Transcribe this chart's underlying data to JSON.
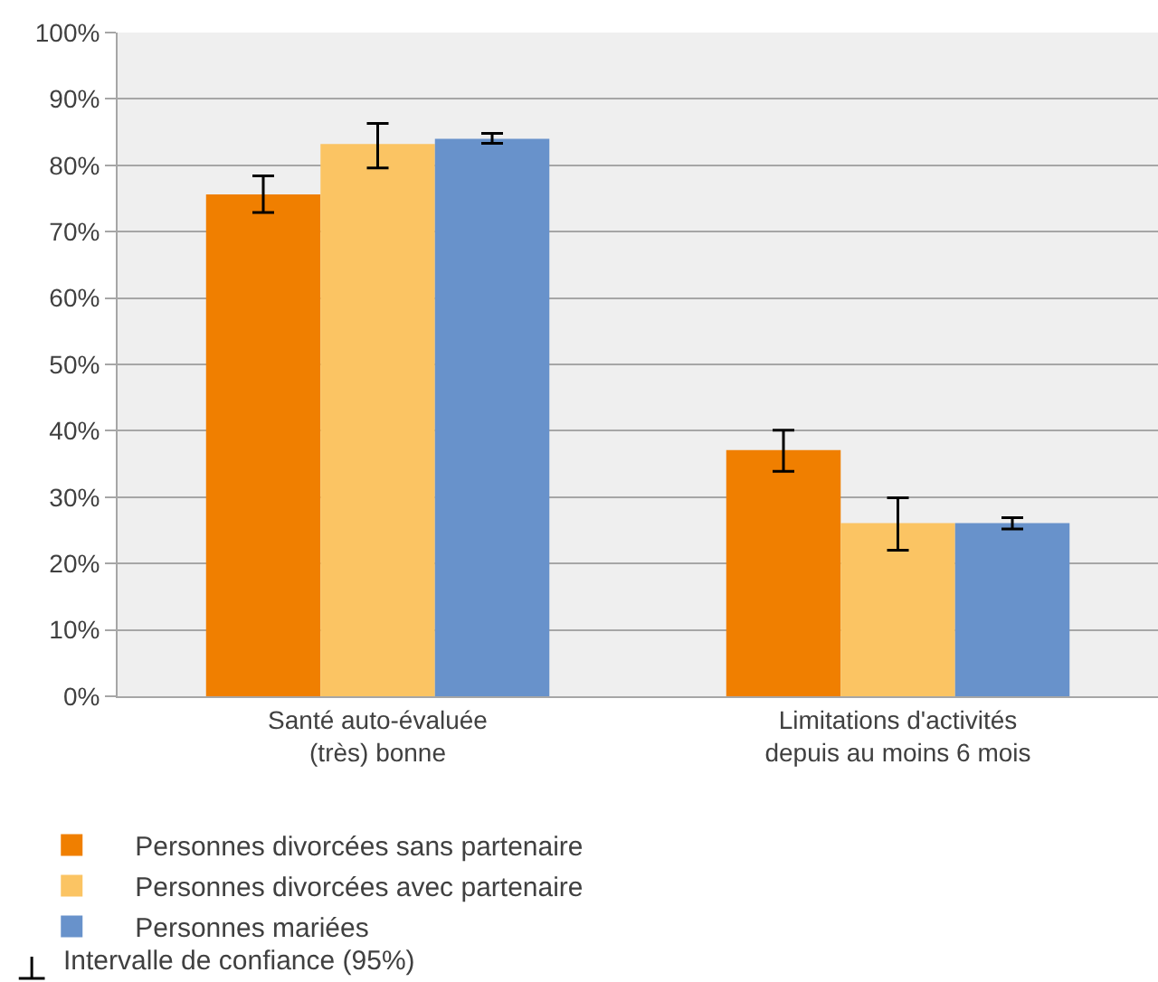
{
  "chart_data": {
    "type": "bar",
    "categories": [
      "Santé auto-évaluée\n(très) bonne",
      "Limitations d'activités\ndepuis au moins 6 mois"
    ],
    "series": [
      {
        "name": "Personnes divorcées sans partenaire",
        "color": "#f07f00",
        "values": [
          75.6,
          37.1
        ],
        "errors": [
          [
            72.9,
            78.4
          ],
          [
            33.9,
            40.1
          ]
        ]
      },
      {
        "name": "Personnes divorcées avec partenaire",
        "color": "#fbc463",
        "values": [
          83.2,
          26.1
        ],
        "errors": [
          [
            79.6,
            86.3
          ],
          [
            22.0,
            29.9
          ]
        ]
      },
      {
        "name": "Personnes mariées",
        "color": "#6892cb",
        "values": [
          84.0,
          26.1
        ],
        "errors": [
          [
            83.3,
            84.8
          ],
          [
            25.2,
            26.9
          ]
        ]
      }
    ],
    "ylim": [
      0,
      100
    ],
    "yticks": [
      {
        "value": 0,
        "label": "0%"
      },
      {
        "value": 10,
        "label": "10%"
      },
      {
        "value": 20,
        "label": "20%"
      },
      {
        "value": 30,
        "label": "30%"
      },
      {
        "value": 40,
        "label": "40%"
      },
      {
        "value": 50,
        "label": "50%"
      },
      {
        "value": 60,
        "label": "60%"
      },
      {
        "value": 70,
        "label": "70%"
      },
      {
        "value": 80,
        "label": "80%"
      },
      {
        "value": 90,
        "label": "90%"
      },
      {
        "value": 100,
        "label": "100%"
      }
    ],
    "grid": "y",
    "legend": "bottom",
    "annotations": [
      "Intervalle de confiance (95%)"
    ]
  }
}
